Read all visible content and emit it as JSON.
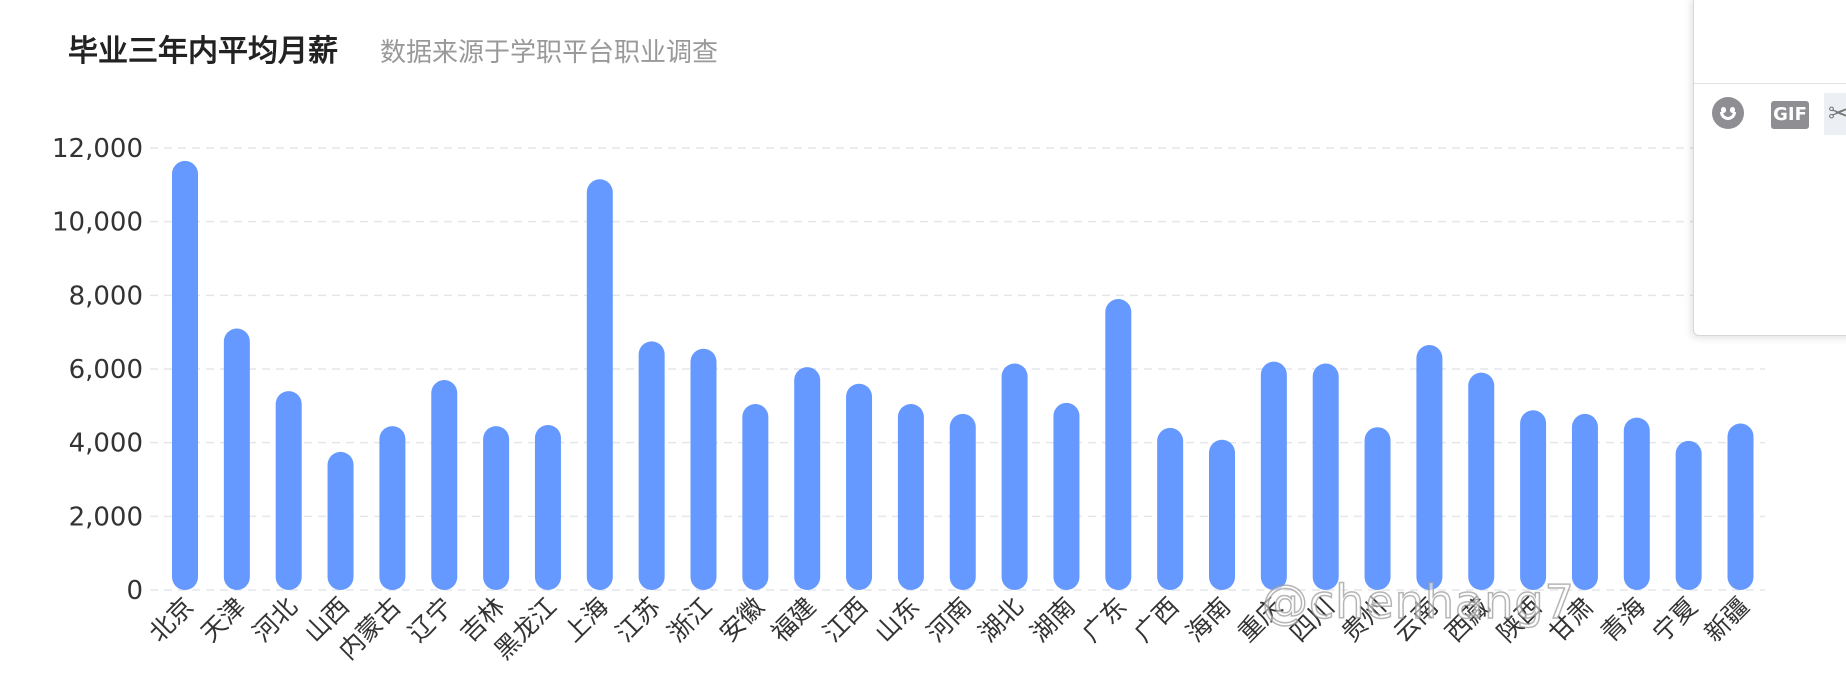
{
  "chart_data": {
    "type": "bar",
    "title": "毕业三年内平均月薪",
    "subtitle": "数据来源于学职平台职业调查",
    "xlabel": "",
    "ylabel": "",
    "ylim": [
      0,
      12000
    ],
    "yticks": [
      "0",
      "2,000",
      "4,000",
      "6,000",
      "8,000",
      "10,000",
      "12,000"
    ],
    "grid": true,
    "bar_color": "#6699ff",
    "categories": [
      "北京",
      "天津",
      "河北",
      "山西",
      "内蒙古",
      "辽宁",
      "吉林",
      "黑龙江",
      "上海",
      "江苏",
      "浙江",
      "安徽",
      "福建",
      "江西",
      "山东",
      "河南",
      "湖北",
      "湖南",
      "广东",
      "广西",
      "海南",
      "重庆",
      "四川",
      "贵州",
      "云南",
      "西藏",
      "陕西",
      "甘肃",
      "青海",
      "宁夏",
      "新疆"
    ],
    "values": [
      11650,
      7100,
      5400,
      3750,
      4450,
      5700,
      4450,
      4480,
      11150,
      6750,
      6550,
      5050,
      6050,
      5600,
      5050,
      4780,
      6150,
      5080,
      7900,
      4400,
      4080,
      6200,
      6150,
      4420,
      6650,
      5900,
      4880,
      4780,
      4680,
      4050,
      4520
    ]
  },
  "watermark": "@chenhang7",
  "side_panel": {
    "gif_label": "GIF",
    "icons": [
      "emoji-icon",
      "gif-icon",
      "scissors-icon"
    ]
  }
}
